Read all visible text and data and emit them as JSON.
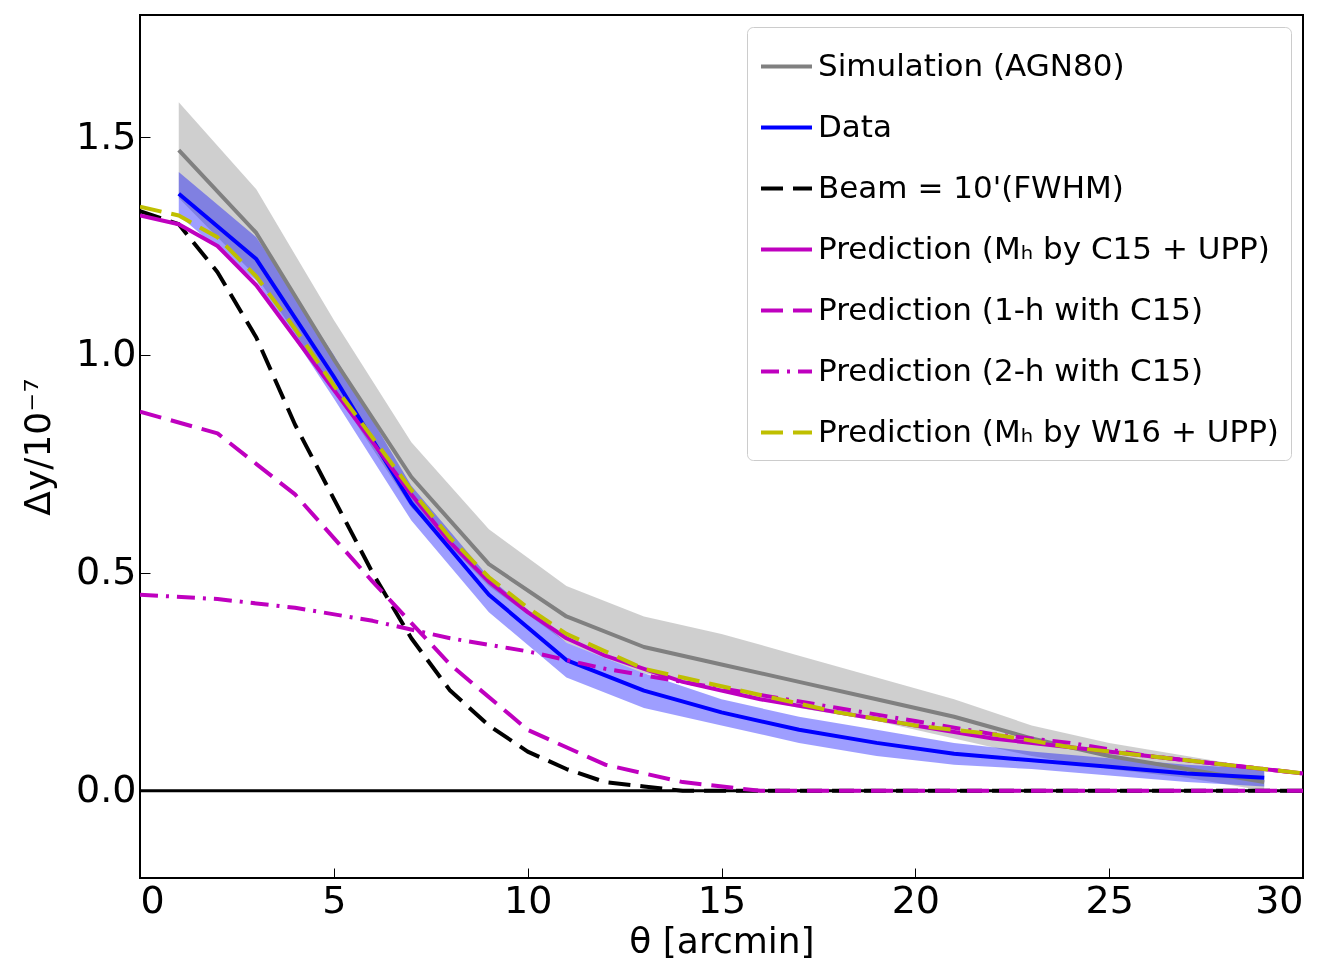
{
  "chart_data": {
    "type": "line",
    "xlabel": "θ [arcmin]",
    "ylabel": "Δy/10⁻⁷",
    "xlim": [
      0,
      30
    ],
    "xticks": [
      0,
      5,
      10,
      15,
      20,
      25,
      30
    ],
    "ylim": [
      -0.2,
      1.78
    ],
    "yticks": [
      {
        "value": 0,
        "label": "0.0"
      },
      0.5,
      {
        "value": 1,
        "label": "1.0"
      },
      1.5
    ],
    "grid": false,
    "legend": "top right",
    "series": [
      {
        "name": "Simulation (AGN80)",
        "color": "#808080",
        "line_style": "solid",
        "x": [
          1,
          3,
          5,
          7,
          9,
          11,
          13,
          15,
          17,
          19,
          21,
          23,
          25,
          27,
          29
        ],
        "values": [
          1.47,
          1.28,
          0.99,
          0.72,
          0.52,
          0.4,
          0.33,
          0.29,
          0.25,
          0.21,
          0.17,
          0.12,
          0.08,
          0.05,
          0.02
        ],
        "lower": [
          1.36,
          1.18,
          0.92,
          0.65,
          0.47,
          0.34,
          0.27,
          0.23,
          0.19,
          0.16,
          0.12,
          0.08,
          0.05,
          0.03,
          0.0
        ],
        "upper": [
          1.58,
          1.38,
          1.08,
          0.8,
          0.6,
          0.47,
          0.4,
          0.36,
          0.31,
          0.26,
          0.21,
          0.15,
          0.11,
          0.08,
          0.05
        ]
      },
      {
        "name": "Data",
        "color": "#0000ff",
        "line_style": "solid",
        "x": [
          1,
          3,
          5,
          7,
          9,
          11,
          13,
          15,
          17,
          19,
          21,
          23,
          25,
          27,
          29
        ],
        "values": [
          1.37,
          1.22,
          0.95,
          0.66,
          0.45,
          0.3,
          0.23,
          0.18,
          0.14,
          0.11,
          0.085,
          0.07,
          0.055,
          0.04,
          0.03
        ],
        "lower": [
          1.32,
          1.17,
          0.9,
          0.62,
          0.41,
          0.26,
          0.19,
          0.15,
          0.11,
          0.08,
          0.06,
          0.05,
          0.035,
          0.02,
          0.01
        ],
        "upper": [
          1.42,
          1.27,
          1.0,
          0.7,
          0.49,
          0.34,
          0.27,
          0.21,
          0.17,
          0.14,
          0.11,
          0.09,
          0.075,
          0.06,
          0.05
        ]
      },
      {
        "name": "Beam = 10'(FWHM)",
        "color": "#000000",
        "line_style": "dashed",
        "x": [
          0,
          1,
          2,
          3,
          4,
          5,
          6,
          7,
          8,
          9,
          10,
          11,
          12,
          13,
          14,
          16,
          20,
          25,
          30
        ],
        "values": [
          1.33,
          1.3,
          1.19,
          1.04,
          0.84,
          0.67,
          0.5,
          0.35,
          0.23,
          0.15,
          0.09,
          0.05,
          0.02,
          0.01,
          0.0,
          0.0,
          0.0,
          0.0,
          0.0
        ]
      },
      {
        "name": "Prediction (Mₕ by C15 + UPP)",
        "color": "#bf00bf",
        "line_style": "solid",
        "x": [
          0,
          1,
          2,
          3,
          4,
          5,
          6,
          7,
          8,
          9,
          10,
          11,
          12,
          13,
          14,
          15,
          16,
          18,
          20,
          22,
          24,
          26,
          28,
          30
        ],
        "values": [
          1.32,
          1.3,
          1.25,
          1.16,
          1.04,
          0.92,
          0.8,
          0.68,
          0.57,
          0.48,
          0.41,
          0.35,
          0.31,
          0.28,
          0.25,
          0.23,
          0.21,
          0.18,
          0.15,
          0.12,
          0.1,
          0.08,
          0.06,
          0.04
        ]
      },
      {
        "name": "Prediction (1-h with C15)",
        "color": "#bf00bf",
        "line_style": "dashed",
        "x": [
          0,
          2,
          4,
          6,
          8,
          10,
          12,
          14,
          16,
          20,
          25,
          30
        ],
        "values": [
          0.87,
          0.82,
          0.68,
          0.48,
          0.29,
          0.14,
          0.06,
          0.02,
          0.0,
          0.0,
          0.0,
          0.0
        ]
      },
      {
        "name": "Prediction (2-h with C15)",
        "color": "#bf00bf",
        "line_style": "dashdot",
        "x": [
          0,
          2,
          4,
          6,
          8,
          10,
          12,
          14,
          16,
          18,
          20,
          22,
          24,
          26,
          28,
          30
        ],
        "values": [
          0.45,
          0.44,
          0.42,
          0.39,
          0.35,
          0.32,
          0.28,
          0.25,
          0.22,
          0.19,
          0.16,
          0.13,
          0.11,
          0.08,
          0.06,
          0.04
        ]
      },
      {
        "name": "Prediction (Mₕ by W16 + UPP)",
        "color": "#bfbf00",
        "line_style": "dashed",
        "x": [
          0,
          1,
          2,
          3,
          4,
          5,
          6,
          7,
          8,
          9,
          10,
          11,
          12,
          13,
          14,
          15,
          16,
          18,
          20,
          22,
          24,
          26,
          28,
          30
        ],
        "values": [
          1.34,
          1.32,
          1.27,
          1.18,
          1.06,
          0.93,
          0.81,
          0.69,
          0.58,
          0.49,
          0.42,
          0.36,
          0.32,
          0.28,
          0.26,
          0.24,
          0.22,
          0.18,
          0.15,
          0.13,
          0.1,
          0.08,
          0.06,
          0.04
        ]
      }
    ],
    "ref_lines": [
      {
        "axis": "y",
        "value": 0,
        "color": "#000000",
        "line_style": "solid"
      }
    ]
  }
}
